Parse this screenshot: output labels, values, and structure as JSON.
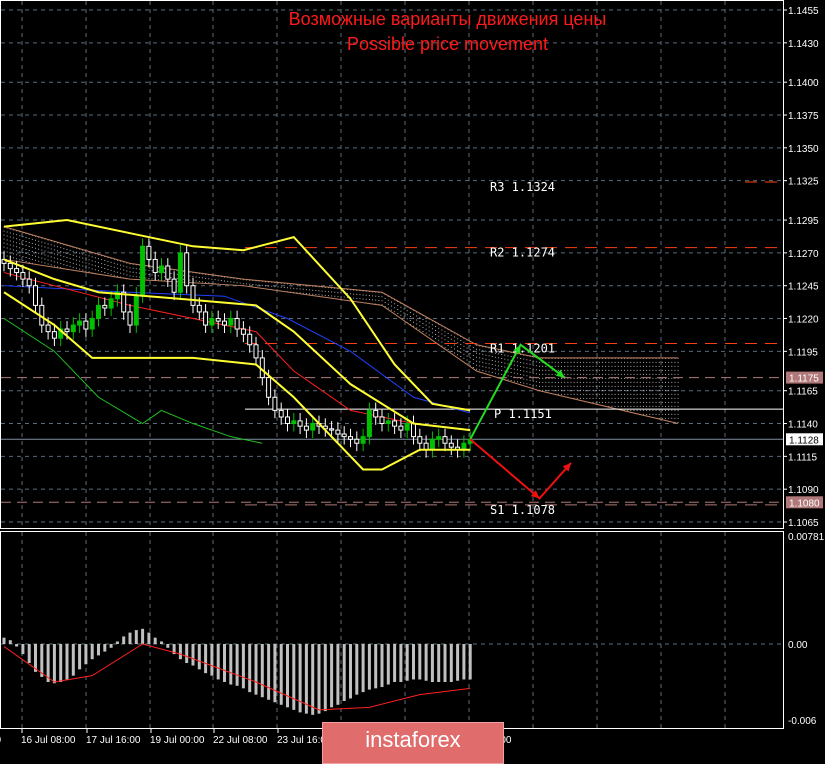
{
  "title_ru": "Возможные варианты движения цены",
  "title_en": "Possible price movement",
  "logo_text": "instaforex",
  "colors": {
    "background": "#000000",
    "grid": "#5a6a7a",
    "bull": "#00c000",
    "bear": "#ffffff",
    "bands": "#ffff33",
    "ma_fast": "#ff2020",
    "ma_slow": "#2040ff",
    "chikou": "#20c020",
    "cloud": "#ffffff",
    "up_arrow": "#22dd22",
    "down_arrow": "#ee1111",
    "histogram": "#c0c0c0",
    "signal": "#ff2020"
  },
  "chart_data": {
    "type": "candlestick",
    "price_axis": {
      "ticks": [
        "1.1455",
        "1.1430",
        "1.1400",
        "1.1375",
        "1.1350",
        "1.1325",
        "1.1295",
        "1.1270",
        "1.1245",
        "1.1220",
        "1.1195",
        "1.1165",
        "1.1140",
        "1.1115",
        "1.1090",
        "1.1065"
      ],
      "ylim": [
        1.1065,
        1.1455
      ]
    },
    "time_labels": [
      "00",
      "16 Jul 08:00",
      "17 Jul 16:00",
      "19 Jul 00:00",
      "22 Jul 08:00",
      "23 Jul 16:00",
      "6:00"
    ],
    "closes": [
      1.1262,
      1.1258,
      1.1255,
      1.125,
      1.1245,
      1.123,
      1.1215,
      1.121,
      1.1205,
      1.1212,
      1.121,
      1.1215,
      1.1218,
      1.1212,
      1.122,
      1.123,
      1.1228,
      1.1235,
      1.124,
      1.1225,
      1.1215,
      1.1238,
      1.1275,
      1.1265,
      1.1255,
      1.126,
      1.125,
      1.124,
      1.127,
      1.1245,
      1.123,
      1.1225,
      1.1215,
      1.122,
      1.1218,
      1.1215,
      1.122,
      1.1212,
      1.1208,
      1.12,
      1.119,
      1.1175,
      1.116,
      1.115,
      1.1145,
      1.114,
      1.1142,
      1.1138,
      1.1135,
      1.114,
      1.1138,
      1.1136,
      1.1135,
      1.1132,
      1.113,
      1.1128,
      1.1125,
      1.113,
      1.115,
      1.1145,
      1.114,
      1.1142,
      1.1138,
      1.1135,
      1.114,
      1.113,
      1.1125,
      1.112,
      1.1128,
      1.113,
      1.1125,
      1.1122,
      1.112,
      1.1125,
      1.1128
    ],
    "indicators": {
      "bb_upper": [
        [
          0,
          1.129
        ],
        [
          10,
          1.1295
        ],
        [
          20,
          1.1285
        ],
        [
          30,
          1.1275
        ],
        [
          38,
          1.1272
        ],
        [
          46,
          1.1282
        ],
        [
          55,
          1.1235
        ],
        [
          62,
          1.1185
        ],
        [
          68,
          1.1155
        ],
        [
          74,
          1.115
        ]
      ],
      "bb_middle": [
        [
          0,
          1.1265
        ],
        [
          8,
          1.125
        ],
        [
          15,
          1.124
        ],
        [
          28,
          1.1235
        ],
        [
          40,
          1.123
        ],
        [
          46,
          1.121
        ],
        [
          55,
          1.117
        ],
        [
          65,
          1.114
        ],
        [
          74,
          1.1135
        ]
      ],
      "bb_lower": [
        [
          0,
          1.124
        ],
        [
          8,
          1.1215
        ],
        [
          14,
          1.119
        ],
        [
          30,
          1.119
        ],
        [
          40,
          1.1185
        ],
        [
          46,
          1.116
        ],
        [
          52,
          1.113
        ],
        [
          57,
          1.1105
        ],
        [
          60,
          1.1105
        ],
        [
          66,
          1.112
        ],
        [
          74,
          1.112
        ]
      ],
      "ma_slow": [
        [
          0,
          1.1245
        ],
        [
          20,
          1.124
        ],
        [
          35,
          1.1237
        ],
        [
          45,
          1.122
        ],
        [
          55,
          1.1195
        ],
        [
          65,
          1.116
        ],
        [
          74,
          1.1148
        ]
      ],
      "ma_fast": [
        [
          0,
          1.1255
        ],
        [
          20,
          1.123
        ],
        [
          40,
          1.121
        ],
        [
          46,
          1.118
        ],
        [
          55,
          1.115
        ],
        [
          65,
          1.114
        ],
        [
          74,
          1.1135
        ]
      ],
      "chikou": [
        [
          0,
          1.122
        ],
        [
          8,
          1.1195
        ],
        [
          15,
          1.116
        ],
        [
          22,
          1.114
        ],
        [
          25,
          1.115
        ],
        [
          30,
          1.114
        ],
        [
          36,
          1.113
        ],
        [
          41,
          1.1125
        ]
      ],
      "cloud_span_a": [
        [
          0,
          1.129
        ],
        [
          20,
          1.1262
        ],
        [
          38,
          1.125
        ],
        [
          60,
          1.124
        ],
        [
          75,
          1.12
        ],
        [
          85,
          1.119
        ],
        [
          107,
          1.119
        ]
      ],
      "cloud_span_b": [
        [
          0,
          1.1265
        ],
        [
          20,
          1.125
        ],
        [
          38,
          1.1245
        ],
        [
          60,
          1.123
        ],
        [
          75,
          1.118
        ],
        [
          85,
          1.1165
        ],
        [
          107,
          1.114
        ]
      ]
    },
    "pivots": [
      {
        "label": "R3 1.1324",
        "value": 1.1324
      },
      {
        "label": "R2 1.1274",
        "value": 1.1274
      },
      {
        "label": "R1 1.1201",
        "value": 1.1201
      },
      {
        "label": "P 1.1151",
        "value": 1.1151
      },
      {
        "label": "S1 1.1078",
        "value": 1.1078
      }
    ],
    "price_markers": [
      {
        "label": "1.1175",
        "value": 1.1175,
        "color": "#b07878"
      },
      {
        "label": "1.1128",
        "value": 1.1128,
        "color": "#ffffff"
      },
      {
        "label": "1.1080",
        "value": 1.108,
        "color": "#b07878"
      }
    ],
    "scenarios": {
      "up": [
        [
          74,
          1.1128
        ],
        [
          82,
          1.12
        ],
        [
          89,
          1.1175
        ]
      ],
      "down": [
        [
          74,
          1.1128
        ],
        [
          85,
          1.1083
        ],
        [
          90,
          1.111
        ]
      ]
    },
    "macd": {
      "ticks": [
        "0.00781",
        "0.00",
        "-0.006"
      ],
      "ylim": [
        -0.0065,
        0.0078
      ],
      "histogram": [
        0.0005,
        0.0003,
        -0.0002,
        -0.0008,
        -0.0015,
        -0.0022,
        -0.0026,
        -0.003,
        -0.0031,
        -0.003,
        -0.0028,
        -0.0025,
        -0.002,
        -0.0016,
        -0.0012,
        -0.0009,
        -0.0006,
        -0.0003,
        0.0002,
        0.0006,
        0.0009,
        0.0011,
        0.0012,
        0.0009,
        0.0005,
        0.0002,
        -0.0003,
        -0.0008,
        -0.0012,
        -0.0015,
        -0.0017,
        -0.002,
        -0.0023,
        -0.0025,
        -0.0028,
        -0.003,
        -0.0032,
        -0.0033,
        -0.0035,
        -0.0038,
        -0.004,
        -0.0042,
        -0.0044,
        -0.0046,
        -0.0048,
        -0.005,
        -0.0052,
        -0.0054,
        -0.0055,
        -0.0056,
        -0.0055,
        -0.0053,
        -0.005,
        -0.0048,
        -0.0045,
        -0.0043,
        -0.004,
        -0.0038,
        -0.0036,
        -0.0035,
        -0.0034,
        -0.0032,
        -0.003,
        -0.003,
        -0.0029,
        -0.0028,
        -0.0028,
        -0.0029,
        -0.003,
        -0.003,
        -0.003,
        -0.003,
        -0.0029,
        -0.0028,
        -0.0028
      ],
      "signal": [
        [
          0,
          -0.0002
        ],
        [
          8,
          -0.003
        ],
        [
          14,
          -0.0025
        ],
        [
          22,
          0.0
        ],
        [
          28,
          -0.0008
        ],
        [
          40,
          -0.003
        ],
        [
          50,
          -0.0052
        ],
        [
          58,
          -0.005
        ],
        [
          66,
          -0.004
        ],
        [
          74,
          -0.0035
        ]
      ]
    }
  }
}
